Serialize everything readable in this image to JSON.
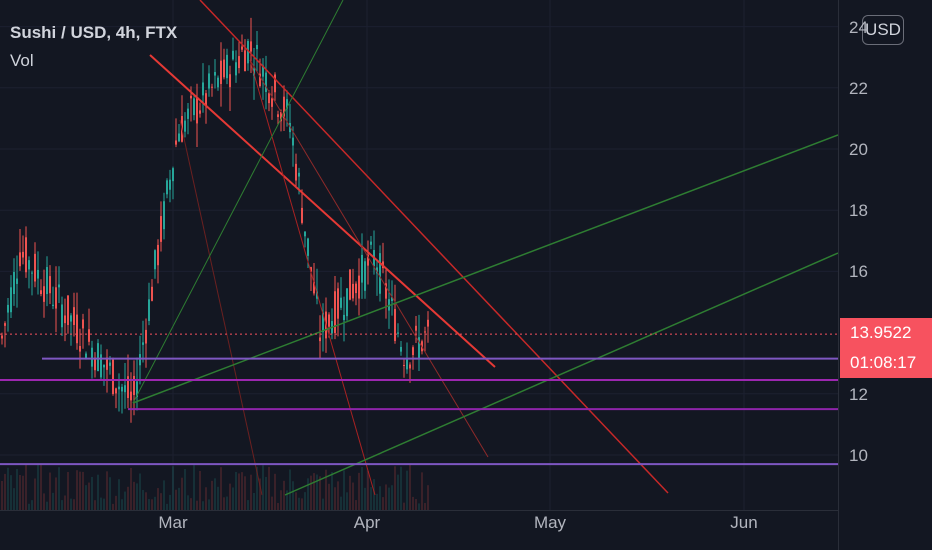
{
  "header": {
    "symbol_title": "Sushi / USD, 4h, FTX",
    "volume_label": "Vol",
    "currency_button": "USD"
  },
  "price_axis": {
    "ticks": [
      "24",
      "22",
      "20",
      "18",
      "16",
      "12",
      "10"
    ],
    "tick_values": [
      24,
      22,
      20,
      18,
      16,
      12,
      10
    ],
    "current_price": "13.9522",
    "countdown": "01:08:17"
  },
  "time_axis": {
    "labels": [
      "Mar",
      "Apr",
      "May",
      "Jun"
    ]
  },
  "colors": {
    "background": "#131722",
    "up": "#26a69a",
    "down": "#ef5350",
    "price_line": "#f7525f",
    "support_purple": "#7b3fc4",
    "support_magenta": "#9c27b0",
    "trend_green": "#2e7d32",
    "trend_red": "#d32f2f"
  },
  "chart_data": {
    "type": "candlestick",
    "instrument": "Sushi / USD",
    "interval": "4h",
    "exchange": "FTX",
    "y_range": [
      8.8,
      24.4
    ],
    "current_price": 13.9522,
    "period_approx": "Feb – mid Apr",
    "swing_points": [
      {
        "label": "start",
        "price": 13.5
      },
      {
        "label": "early Feb high",
        "price": 16.7
      },
      {
        "label": "Feb low",
        "price": 11.7
      },
      {
        "label": "late Feb high",
        "price": 20.6
      },
      {
        "label": "Mar high",
        "price": 23.4
      },
      {
        "label": "Mar lower high",
        "price": 20.9
      },
      {
        "label": "Mar low",
        "price": 14.0
      },
      {
        "label": "Apr high",
        "price": 16.5
      },
      {
        "label": "Apr low",
        "price": 13.3
      },
      {
        "label": "last",
        "price": 13.95
      }
    ],
    "horizontal_levels": [
      13.15,
      12.45,
      11.5,
      9.7
    ],
    "drawn_lines": [
      {
        "kind": "trend-down",
        "color": "red"
      },
      {
        "kind": "trend-down",
        "color": "red"
      },
      {
        "kind": "trend-up",
        "color": "green"
      },
      {
        "kind": "trend-up",
        "color": "green"
      },
      {
        "kind": "trend-up",
        "color": "green"
      }
    ]
  }
}
